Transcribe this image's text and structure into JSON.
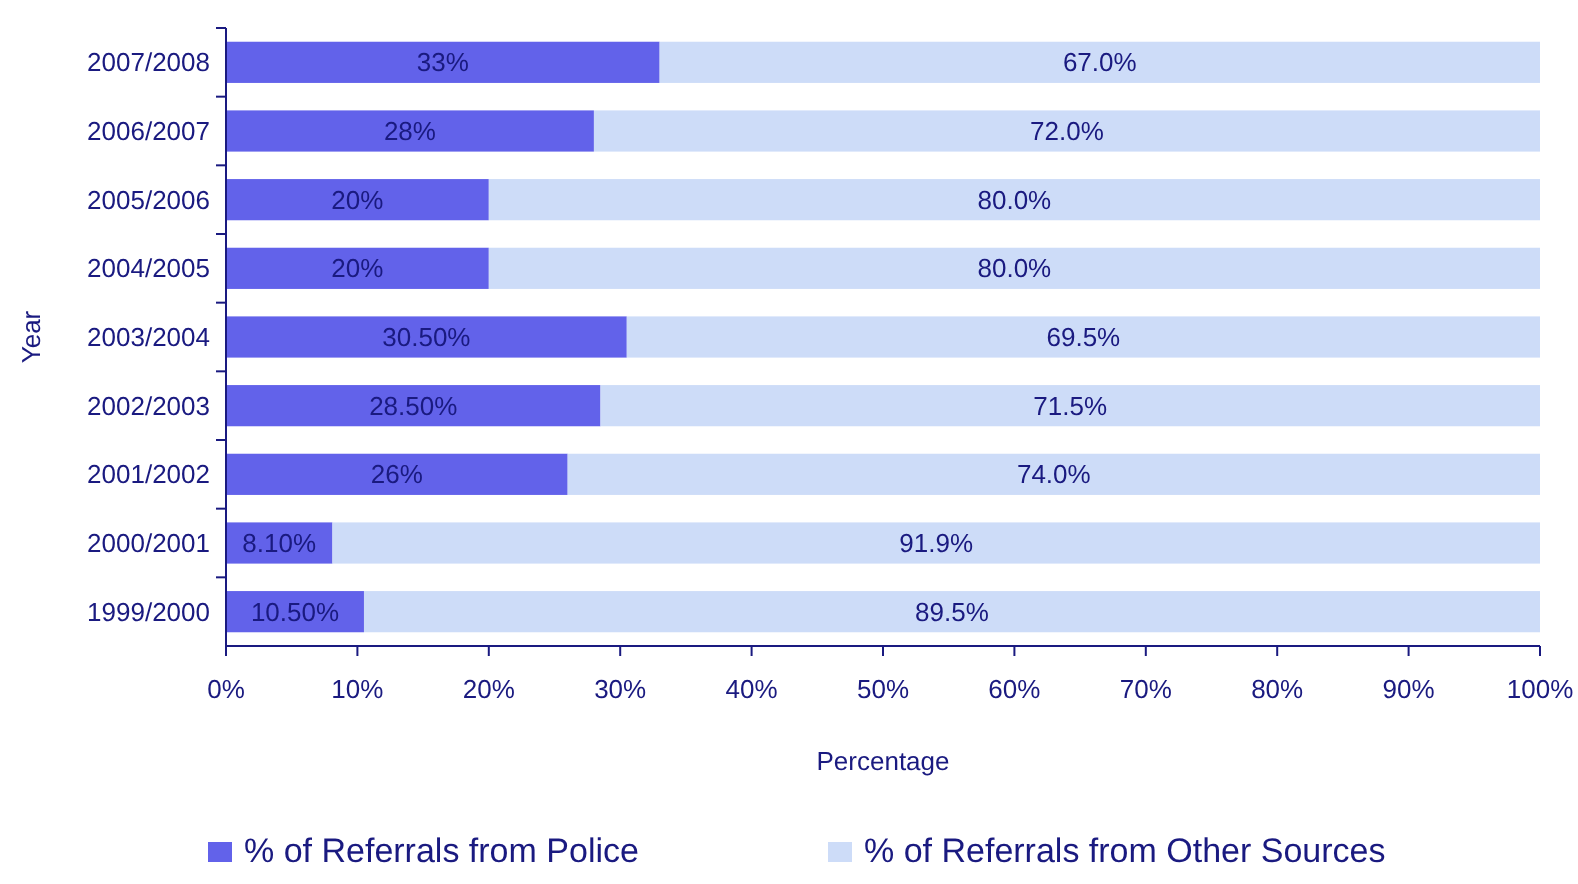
{
  "chart_data": {
    "type": "bar",
    "orientation": "horizontal",
    "stacked": true,
    "xlabel": "Percentage",
    "ylabel": "Year",
    "categories": [
      "2007/2008",
      "2006/2007",
      "2005/2006",
      "2004/2005",
      "2003/2004",
      "2002/2003",
      "2001/2002",
      "2000/2001",
      "1999/2000"
    ],
    "series": [
      {
        "name": "% of Referrals from Police",
        "color": "#6262ea",
        "values": [
          33,
          28,
          20,
          20,
          30.5,
          28.5,
          26,
          8.1,
          10.5
        ],
        "value_labels": [
          "33%",
          "28%",
          "20%",
          "20%",
          "30.50%",
          "28.50%",
          "26%",
          "8.10%",
          "10.50%"
        ]
      },
      {
        "name": "% of Referrals from Other Sources",
        "color": "#cddcf8",
        "values": [
          67,
          72,
          80,
          80,
          69.5,
          71.5,
          74,
          91.9,
          89.5
        ],
        "value_labels": [
          "67.0%",
          "72.0%",
          "80.0%",
          "80.0%",
          "69.5%",
          "71.5%",
          "74.0%",
          "91.9%",
          "89.5%"
        ]
      }
    ],
    "xlim": [
      0,
      100
    ],
    "xticks": [
      {
        "value": 0,
        "label": "0%"
      },
      {
        "value": 10,
        "label": "10%"
      },
      {
        "value": 20,
        "label": "20%"
      },
      {
        "value": 30,
        "label": "30%"
      },
      {
        "value": 40,
        "label": "40%"
      },
      {
        "value": 50,
        "label": "50%"
      },
      {
        "value": 60,
        "label": "60%"
      },
      {
        "value": 70,
        "label": "70%"
      },
      {
        "value": 80,
        "label": "80%"
      },
      {
        "value": 90,
        "label": "90%"
      },
      {
        "value": 100,
        "label": "100%"
      }
    ],
    "legend": "bottom",
    "grid": false
  }
}
